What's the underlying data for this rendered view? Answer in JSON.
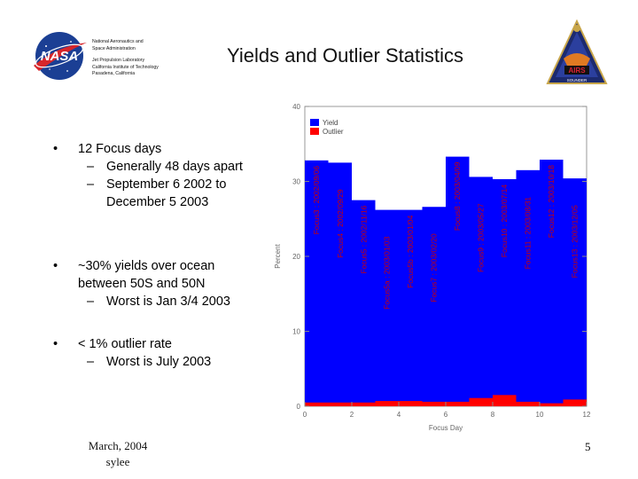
{
  "header": {
    "org_lines": [
      "National Aeronautics and",
      "Space Administration"
    ],
    "lab_lines": [
      "Jet Propulsion Laboratory",
      "California Institute of Technology",
      "Pasadena, California"
    ],
    "title": "Yields and Outlier Statistics",
    "nasa_logo_text": "NASA",
    "airs_logo_text": "AIRS",
    "airs_logo_sub": "SOUNDER"
  },
  "bullets": [
    {
      "symbol": "•",
      "text": "12 Focus days",
      "subs": [
        {
          "dash": "–",
          "text": "Generally 48 days apart"
        },
        {
          "dash": "–",
          "text": "September 6 2002 to December 5 2003"
        }
      ]
    },
    {
      "symbol": "•",
      "text": "~30% yields over ocean between 50S and 50N",
      "subs": [
        {
          "dash": "–",
          "text": "Worst is Jan 3/4 2003"
        }
      ]
    },
    {
      "symbol": "•",
      "text": "< 1% outlier rate",
      "subs": [
        {
          "dash": "–",
          "text": "Worst is July 2003"
        }
      ]
    }
  ],
  "footer": {
    "line1": "March, 2004",
    "line2": "sylee",
    "page": "5"
  },
  "colors": {
    "yield": "#0000ff",
    "outlier": "#ff0000",
    "focus_label": "#cc0000"
  },
  "chart_data": {
    "type": "bar",
    "title": "",
    "xlabel": "Focus Day",
    "ylabel": "Percent",
    "xlim": [
      0,
      12
    ],
    "ylim": [
      0,
      40
    ],
    "x_ticks": [
      0,
      2,
      4,
      6,
      8,
      10,
      12
    ],
    "y_ticks": [
      0,
      10,
      20,
      30,
      40
    ],
    "legend": [
      "Yield",
      "Outlier"
    ],
    "legend_position": "top-left",
    "series": [
      {
        "name": "Yield",
        "color": "#0000ff",
        "values": [
          32.8,
          32.5,
          27.5,
          26.2,
          26.2,
          26.6,
          33.3,
          30.6,
          30.3,
          31.5,
          32.9,
          30.4
        ]
      },
      {
        "name": "Outlier",
        "color": "#ff0000",
        "values": [
          0.5,
          0.5,
          0.5,
          0.7,
          0.7,
          0.6,
          0.6,
          1.1,
          1.5,
          0.6,
          0.4,
          0.9
        ]
      }
    ],
    "focus_labels": [
      "Focus3 : 2002/09/06",
      "Focus4 : 2002/09/29",
      "Focus5 : 2002/11/16",
      "Focus5a : 2003/01/03",
      "Focus5b : 2003/01/04",
      "Focus7 : 2003/02/20",
      "Focus8 : 2003/04/09",
      "Focus9 : 2003/05/27",
      "Focus10 : 2003/07/14",
      "Focus11 : 2003/08/31",
      "Focus12 : 2003/10/18",
      "Focus13 : 2003/12/05"
    ]
  }
}
